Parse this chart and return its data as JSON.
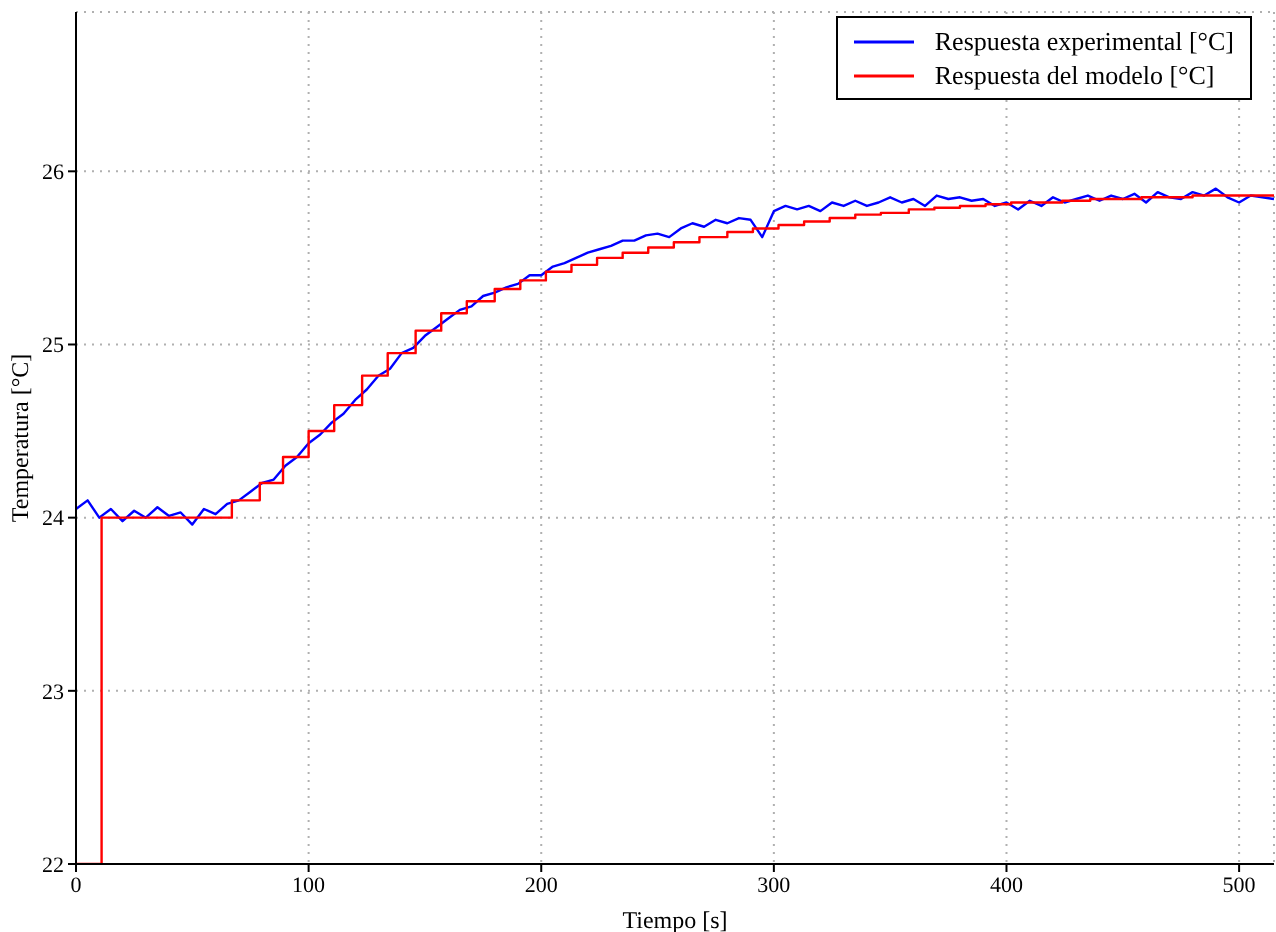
{
  "chart_data": {
    "type": "line",
    "xlabel": "Tiempo [s]",
    "ylabel": "Temperatura [°C]",
    "xlim": [
      0,
      515
    ],
    "xticks": [
      0,
      100,
      200,
      300,
      400,
      500
    ],
    "ylim": [
      22,
      26.92
    ],
    "yticks": [
      22,
      23,
      24,
      25,
      26
    ],
    "grid": true,
    "legend": "top right",
    "series": [
      {
        "name": "Respuesta experimental [°C]",
        "color": "#0000ff",
        "x": [
          0,
          5,
          10,
          15,
          20,
          25,
          30,
          35,
          40,
          45,
          50,
          55,
          60,
          65,
          70,
          75,
          80,
          85,
          90,
          95,
          100,
          105,
          110,
          115,
          120,
          125,
          130,
          135,
          140,
          145,
          150,
          155,
          160,
          165,
          170,
          175,
          180,
          185,
          190,
          195,
          200,
          205,
          210,
          215,
          220,
          225,
          230,
          235,
          240,
          245,
          250,
          255,
          260,
          265,
          270,
          275,
          280,
          285,
          290,
          295,
          300,
          305,
          310,
          315,
          320,
          325,
          330,
          335,
          340,
          345,
          350,
          355,
          360,
          365,
          370,
          375,
          380,
          385,
          390,
          395,
          400,
          405,
          410,
          415,
          420,
          425,
          430,
          435,
          440,
          445,
          450,
          455,
          460,
          465,
          470,
          475,
          480,
          485,
          490,
          495,
          500,
          505,
          510,
          515
        ],
        "values": [
          24.05,
          24.1,
          24.0,
          24.05,
          23.98,
          24.04,
          24.0,
          24.06,
          24.01,
          24.03,
          23.96,
          24.05,
          24.02,
          24.08,
          24.1,
          24.15,
          24.2,
          24.22,
          24.3,
          24.35,
          24.43,
          24.48,
          24.55,
          24.6,
          24.68,
          24.74,
          24.82,
          24.86,
          24.95,
          24.98,
          25.05,
          25.1,
          25.15,
          25.2,
          25.22,
          25.28,
          25.3,
          25.33,
          25.35,
          25.4,
          25.4,
          25.45,
          25.47,
          25.5,
          25.53,
          25.55,
          25.57,
          25.6,
          25.6,
          25.63,
          25.64,
          25.62,
          25.67,
          25.7,
          25.68,
          25.72,
          25.7,
          25.73,
          25.72,
          25.62,
          25.77,
          25.8,
          25.78,
          25.8,
          25.77,
          25.82,
          25.8,
          25.83,
          25.8,
          25.82,
          25.85,
          25.82,
          25.84,
          25.8,
          25.86,
          25.84,
          25.85,
          25.83,
          25.84,
          25.8,
          25.82,
          25.78,
          25.83,
          25.8,
          25.85,
          25.82,
          25.84,
          25.86,
          25.83,
          25.86,
          25.84,
          25.87,
          25.82,
          25.88,
          25.85,
          25.84,
          25.88,
          25.86,
          25.9,
          25.85,
          25.82,
          25.86,
          25.85,
          25.84
        ]
      },
      {
        "name": "Respuesta del modelo [°C]",
        "color": "#ff0000",
        "type": "step",
        "x": [
          0,
          11,
          67,
          79,
          89,
          100,
          111,
          123,
          134,
          146,
          157,
          168,
          180,
          191,
          202,
          213,
          224,
          235,
          246,
          257,
          268,
          280,
          291,
          302,
          313,
          324,
          335,
          346,
          358,
          369,
          380,
          391,
          402,
          413,
          424,
          436,
          447,
          458,
          469,
          480,
          491,
          502,
          515
        ],
        "values": [
          22,
          24.0,
          24.1,
          24.2,
          24.35,
          24.5,
          24.65,
          24.82,
          24.95,
          25.08,
          25.18,
          25.25,
          25.32,
          25.37,
          25.42,
          25.46,
          25.5,
          25.53,
          25.56,
          25.59,
          25.62,
          25.65,
          25.67,
          25.69,
          25.71,
          25.73,
          25.75,
          25.76,
          25.78,
          25.79,
          25.8,
          25.81,
          25.82,
          25.82,
          25.83,
          25.84,
          25.84,
          25.85,
          25.85,
          25.86,
          25.86,
          25.86,
          25.86
        ]
      }
    ]
  }
}
